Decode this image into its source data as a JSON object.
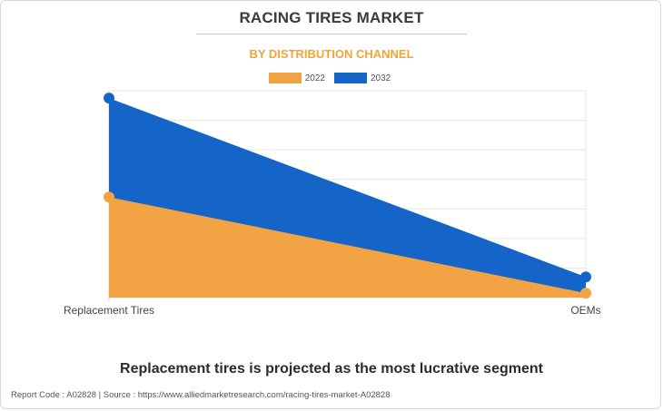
{
  "header": {
    "title": "RACING TIRES MARKET",
    "subtitle": "BY DISTRIBUTION CHANNEL"
  },
  "colors": {
    "series_2022": "#f2a444",
    "series_2032": "#1565c8",
    "grid": "#e6e6e6",
    "subtitle": "#f2a33a"
  },
  "chart_data": {
    "type": "area",
    "categories": [
      "Replacement Tires",
      "OEMs"
    ],
    "series": [
      {
        "name": "2022",
        "values": [
          3.4,
          0.15
        ],
        "color": "#f2a444"
      },
      {
        "name": "2032",
        "values": [
          6.75,
          0.7
        ],
        "color": "#1565c8"
      }
    ],
    "ylim": [
      0,
      7
    ],
    "grid": true,
    "legend": "top-center",
    "xlabel": "",
    "ylabel": ""
  },
  "tagline": "Replacement tires is projected as the most lucrative segment",
  "footer": "Report Code : A02828  |  Source : https://www.alliedmarketresearch.com/racing-tires-market-A02828"
}
